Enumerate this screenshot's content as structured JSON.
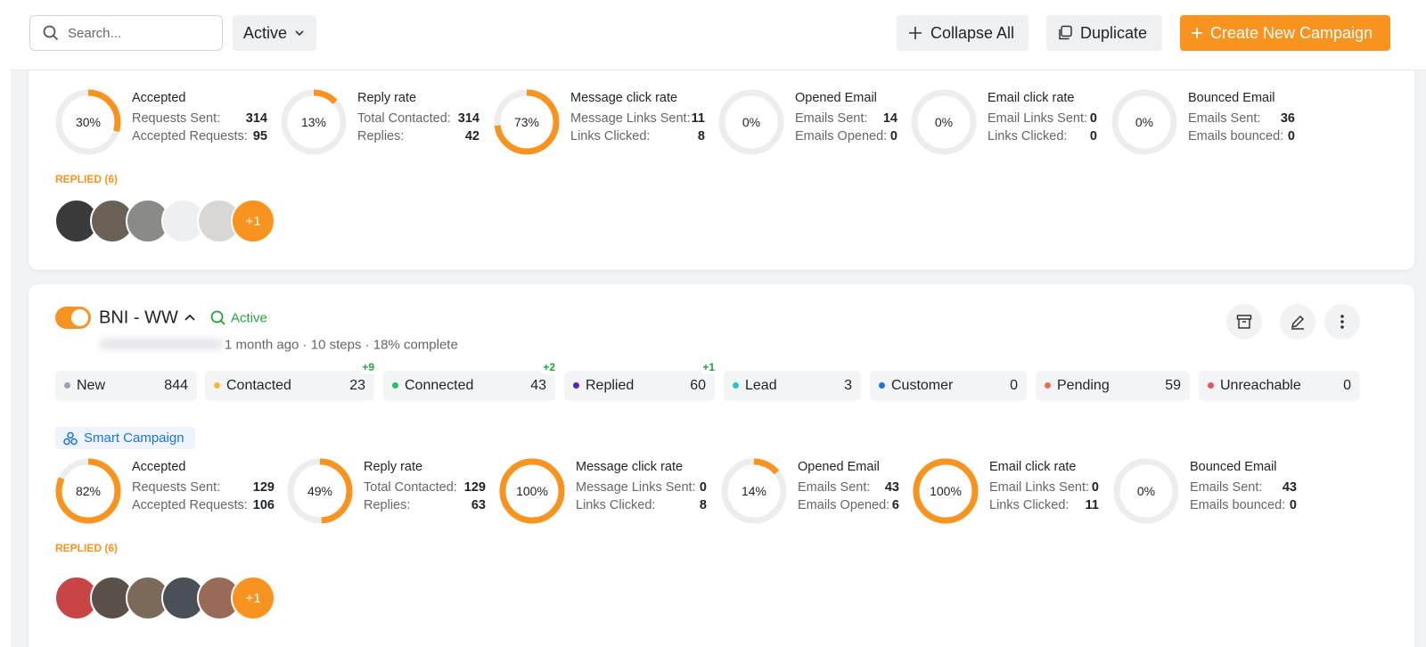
{
  "toolbar": {
    "search_placeholder": "Search...",
    "filter": "Active",
    "buttons": [
      "Collapse All",
      "Duplicate",
      "Create New Campaign"
    ]
  },
  "campaigns": [
    {
      "stats": [
        {
          "percent": 30,
          "percent_label": "30%",
          "title": "Accepted",
          "rows": [
            {
              "label": "Requests Sent:",
              "value": 314
            },
            {
              "label": "Accepted Requests:",
              "value": 95
            }
          ]
        },
        {
          "percent": 13,
          "percent_label": "13%",
          "title": "Reply rate",
          "rows": [
            {
              "label": "Total Contacted:",
              "value": 314
            },
            {
              "label": "Replies:",
              "value": 42
            }
          ]
        },
        {
          "percent": 73,
          "percent_label": "73%",
          "title": "Message click rate",
          "rows": [
            {
              "label": "Message Links Sent:",
              "value": 11
            },
            {
              "label": "Links Clicked:",
              "value": 8
            }
          ]
        },
        {
          "percent": 0,
          "percent_label": "0%",
          "title": "Opened Email",
          "rows": [
            {
              "label": "Emails Sent:",
              "value": 14
            },
            {
              "label": "Emails Opened:",
              "value": 0
            }
          ]
        },
        {
          "percent": 0,
          "percent_label": "0%",
          "title": "Email click rate",
          "rows": [
            {
              "label": "Email Links Sent:",
              "value": 0
            },
            {
              "label": "Links Clicked:",
              "value": 0
            }
          ]
        },
        {
          "percent": 0,
          "percent_label": "0%",
          "title": "Bounced Email",
          "rows": [
            {
              "label": "Emails Sent:",
              "value": 36
            },
            {
              "label": "Emails bounced:",
              "value": 0
            }
          ]
        }
      ],
      "replied_label": "REPLIED (6)",
      "more": "+1"
    },
    {
      "name": "BNI - WW",
      "status": "Active",
      "meta": "1 month ago · 10 steps · 18% complete",
      "stages": [
        {
          "name": "New",
          "count": 844,
          "color": "#94a3b8"
        },
        {
          "name": "Contacted",
          "count": 23,
          "color": "#f5b82e",
          "badge": "+9"
        },
        {
          "name": "Connected",
          "count": 43,
          "color": "#22c55e",
          "badge": "+2"
        },
        {
          "name": "Replied",
          "count": 60,
          "color": "#5b21b6",
          "badge": "+1"
        },
        {
          "name": "Lead",
          "count": 3,
          "color": "#22c5d5"
        },
        {
          "name": "Customer",
          "count": 0,
          "color": "#1a73e8"
        },
        {
          "name": "Pending",
          "count": 59,
          "color": "#f06a5a"
        },
        {
          "name": "Unreachable",
          "count": 0,
          "color": "#ef5350"
        }
      ],
      "tag": "Smart Campaign",
      "stats": [
        {
          "percent": 82,
          "percent_label": "82%",
          "title": "Accepted",
          "rows": [
            {
              "label": "Requests Sent:",
              "value": 129
            },
            {
              "label": "Accepted Requests:",
              "value": 106
            }
          ]
        },
        {
          "percent": 49,
          "percent_label": "49%",
          "title": "Reply rate",
          "rows": [
            {
              "label": "Total Contacted:",
              "value": 129
            },
            {
              "label": "Replies:",
              "value": 63
            }
          ]
        },
        {
          "percent": 100,
          "percent_label": "100%",
          "title": "Message click rate",
          "rows": [
            {
              "label": "Message Links Sent:",
              "value": 0
            },
            {
              "label": "Links Clicked:",
              "value": 8
            }
          ]
        },
        {
          "percent": 14,
          "percent_label": "14%",
          "title": "Opened Email",
          "rows": [
            {
              "label": "Emails Sent:",
              "value": 43
            },
            {
              "label": "Emails Opened:",
              "value": 6
            }
          ]
        },
        {
          "percent": 100,
          "percent_label": "100%",
          "title": "Email click rate",
          "rows": [
            {
              "label": "Email Links Sent:",
              "value": 0
            },
            {
              "label": "Links Clicked:",
              "value": 11
            }
          ]
        },
        {
          "percent": 0,
          "percent_label": "0%",
          "title": "Bounced Email",
          "rows": [
            {
              "label": "Emails Sent:",
              "value": 43
            },
            {
              "label": "Emails bounced:",
              "value": 0
            }
          ]
        }
      ],
      "replied_label": "REPLIED (6)",
      "more": "+1"
    }
  ]
}
